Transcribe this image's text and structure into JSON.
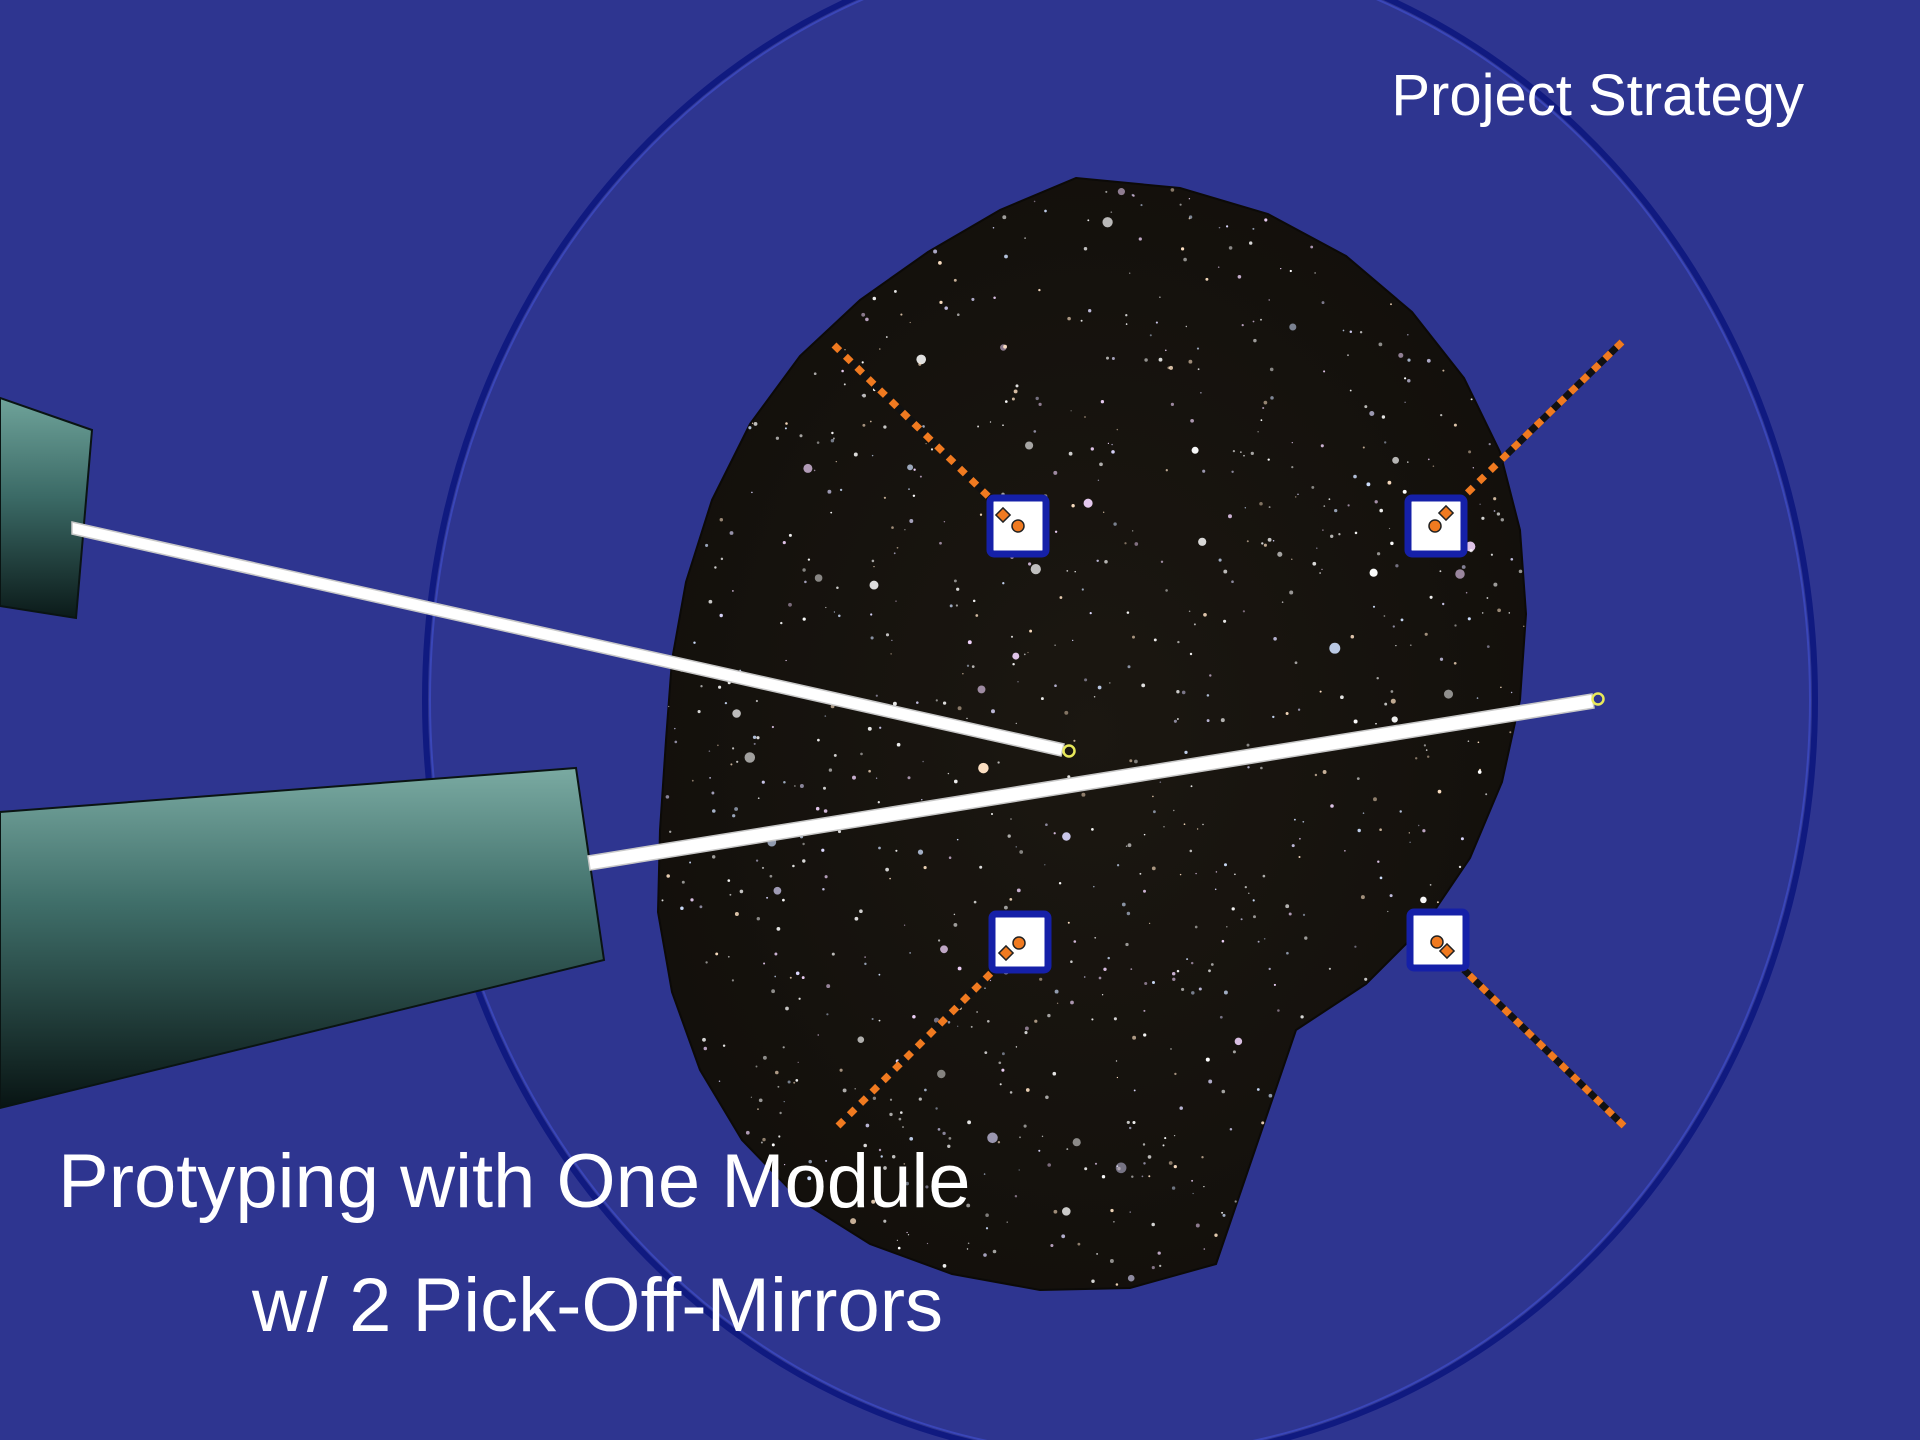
{
  "slide": {
    "title": "Project Strategy",
    "caption_line1": "Protyping with One Module",
    "caption_line2": "w/ 2 Pick-Off-Mirrors"
  },
  "colors": {
    "background": "#2e3590",
    "ring": "#1f2a9e",
    "sky": "#17130f",
    "star": "#ffffff",
    "arm": "#ffffff",
    "track": "#f07a20",
    "module_border": "#1520a8",
    "marker": "#e8e85a",
    "text": "#ffffff"
  },
  "diagram": {
    "pick_off_mirror_count": 2,
    "module_count": 4,
    "track_count": 4
  }
}
